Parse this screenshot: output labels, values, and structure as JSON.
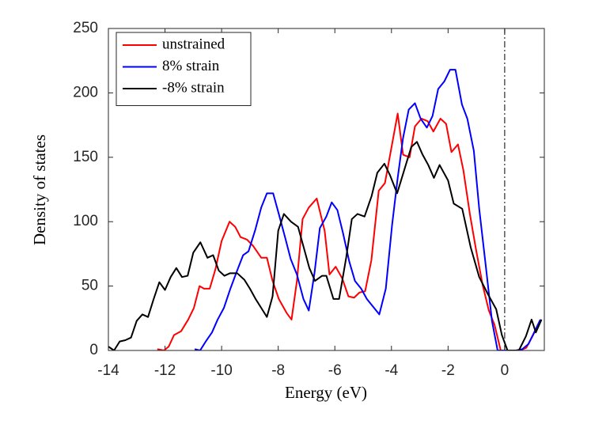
{
  "chart_data": {
    "type": "line",
    "xlabel": "Energy (eV)",
    "ylabel": "Density of states",
    "xlim": [
      -14,
      1.4
    ],
    "ylim": [
      0,
      250
    ],
    "xticks": [
      -14,
      -12,
      -10,
      -8,
      -6,
      -4,
      -2,
      0
    ],
    "yticks": [
      0,
      50,
      100,
      150,
      200,
      250
    ],
    "reference_line_x": 0,
    "legend": "upper-left",
    "series": [
      {
        "name": "unstrained",
        "color": "#ff0000",
        "x": [
          -12.27,
          -12.04,
          -11.87,
          -11.68,
          -11.43,
          -11.18,
          -10.98,
          -10.78,
          -10.62,
          -10.42,
          -10.22,
          -10.0,
          -9.72,
          -9.52,
          -9.33,
          -9.1,
          -8.88,
          -8.6,
          -8.4,
          -8.2,
          -7.98,
          -7.7,
          -7.53,
          -7.34,
          -7.14,
          -6.92,
          -6.64,
          -6.36,
          -6.19,
          -5.97,
          -5.74,
          -5.52,
          -5.32,
          -5.13,
          -4.93,
          -4.71,
          -4.45,
          -4.23,
          -4.03,
          -3.78,
          -3.59,
          -3.36,
          -3.17,
          -2.94,
          -2.72,
          -2.52,
          -2.27,
          -2.07,
          -1.88,
          -1.65,
          -1.46,
          -1.23,
          -1.01,
          -0.78,
          -0.56,
          -0.36,
          -0.14,
          0.08,
          0.31,
          0.53,
          0.76,
          0.98,
          1.29
        ],
        "values": [
          1,
          0,
          3,
          12,
          15,
          24,
          33,
          50,
          48,
          48,
          63,
          85,
          100,
          96,
          88,
          86,
          81,
          72,
          72,
          54,
          40,
          29,
          24,
          54,
          102,
          111,
          118,
          93,
          59,
          65,
          56,
          42,
          41,
          45,
          46,
          70,
          124,
          130,
          154,
          184,
          152,
          150,
          174,
          180,
          178,
          170,
          180,
          176,
          154,
          160,
          140,
          106,
          78,
          51,
          31,
          20,
          0,
          0,
          0,
          0,
          2,
          11,
          24
        ]
      },
      {
        "name": "8% strain",
        "color": "#0000ff",
        "x": [
          -10.95,
          -10.76,
          -10.56,
          -10.34,
          -10.14,
          -9.92,
          -9.69,
          -9.47,
          -9.24,
          -9.05,
          -8.82,
          -8.6,
          -8.4,
          -8.18,
          -7.98,
          -7.76,
          -7.56,
          -7.34,
          -7.11,
          -6.92,
          -6.72,
          -6.53,
          -6.3,
          -6.11,
          -5.91,
          -5.71,
          -5.49,
          -5.29,
          -5.07,
          -4.87,
          -4.65,
          -4.43,
          -4.2,
          -3.98,
          -3.78,
          -3.59,
          -3.39,
          -3.17,
          -2.97,
          -2.75,
          -2.55,
          -2.35,
          -2.13,
          -1.93,
          -1.74,
          -1.51,
          -1.32,
          -1.09,
          -0.9,
          -0.67,
          -0.45,
          -0.25,
          -0.03,
          0.2,
          0.39,
          0.62,
          0.84,
          1.04,
          1.26
        ],
        "values": [
          1,
          0,
          7,
          14,
          24,
          33,
          48,
          61,
          74,
          77,
          93,
          111,
          122,
          122,
          106,
          88,
          71,
          59,
          40,
          31,
          60,
          95,
          104,
          115,
          109,
          91,
          69,
          54,
          48,
          40,
          34,
          28,
          48,
          97,
          134,
          165,
          187,
          192,
          180,
          173,
          182,
          203,
          209,
          218,
          218,
          191,
          180,
          155,
          110,
          66,
          23,
          0,
          0,
          0,
          0,
          1,
          5,
          14,
          24
        ]
      },
      {
        "name": "-8% strain",
        "color": "#000000",
        "x": [
          -14,
          -13.8,
          -13.6,
          -13.4,
          -13.2,
          -13.0,
          -12.8,
          -12.6,
          -12.4,
          -12.2,
          -12.0,
          -11.8,
          -11.6,
          -11.4,
          -11.2,
          -11.0,
          -10.75,
          -10.5,
          -10.3,
          -10.1,
          -9.9,
          -9.7,
          -9.45,
          -9.2,
          -9.0,
          -8.8,
          -8.6,
          -8.4,
          -8.2,
          -8.0,
          -7.8,
          -7.55,
          -7.3,
          -7.1,
          -6.9,
          -6.7,
          -6.45,
          -6.3,
          -6.05,
          -5.85,
          -5.6,
          -5.4,
          -5.2,
          -4.95,
          -4.7,
          -4.5,
          -4.25,
          -4.05,
          -3.8,
          -3.55,
          -3.3,
          -3.1,
          -2.9,
          -2.7,
          -2.5,
          -2.3,
          -2.0,
          -1.8,
          -1.5,
          -1.2,
          -0.9,
          -0.6,
          -0.3,
          -0.1,
          0.1,
          0.3,
          0.5,
          0.75,
          0.95,
          1.1,
          1.3
        ],
        "values": [
          3,
          0,
          7,
          8,
          10,
          23,
          28,
          26,
          40,
          53,
          47,
          57,
          64,
          57,
          58,
          76,
          84,
          72,
          74,
          62,
          58,
          60,
          60,
          55,
          48,
          40,
          33,
          26,
          42,
          93,
          106,
          100,
          96,
          80,
          64,
          54,
          58,
          58,
          40,
          40,
          72,
          102,
          106,
          104,
          120,
          138,
          145,
          136,
          122,
          140,
          158,
          162,
          152,
          144,
          134,
          144,
          132,
          114,
          110,
          80,
          57,
          44,
          32,
          12,
          0,
          0,
          0,
          11,
          24,
          14,
          24
        ]
      }
    ]
  }
}
